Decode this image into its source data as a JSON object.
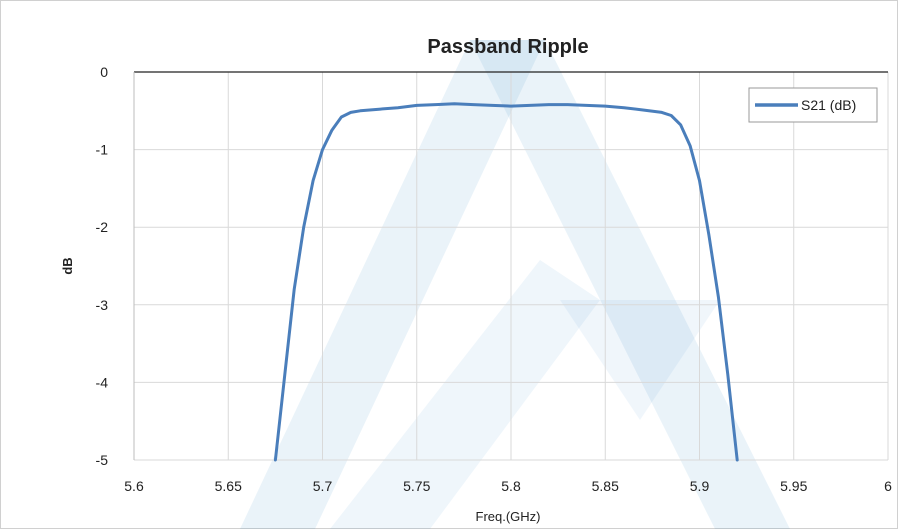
{
  "chart_data": {
    "type": "line",
    "title": "Passband Ripple",
    "xlabel": "Freq.(GHz)",
    "ylabel": "dB",
    "xlim": [
      5.6,
      6.0
    ],
    "ylim": [
      -5,
      0
    ],
    "x_ticks": [
      "5.6",
      "5.65",
      "5.7",
      "5.75",
      "5.8",
      "5.85",
      "5.9",
      "5.95",
      "6"
    ],
    "y_ticks": [
      "0",
      "-1",
      "-2",
      "-3",
      "-4",
      "-5"
    ],
    "grid": true,
    "legend_position": "top-right",
    "series": [
      {
        "name": "S21 (dB)",
        "color": "#4a7ebb",
        "x": [
          5.675,
          5.68,
          5.685,
          5.69,
          5.695,
          5.7,
          5.705,
          5.71,
          5.715,
          5.72,
          5.73,
          5.74,
          5.75,
          5.76,
          5.77,
          5.78,
          5.79,
          5.8,
          5.81,
          5.82,
          5.83,
          5.84,
          5.85,
          5.86,
          5.87,
          5.88,
          5.885,
          5.89,
          5.895,
          5.9,
          5.905,
          5.91,
          5.915,
          5.92
        ],
        "y": [
          -5.0,
          -3.9,
          -2.8,
          -2.0,
          -1.4,
          -1.0,
          -0.75,
          -0.58,
          -0.52,
          -0.5,
          -0.48,
          -0.46,
          -0.43,
          -0.42,
          -0.41,
          -0.42,
          -0.43,
          -0.44,
          -0.43,
          -0.42,
          -0.42,
          -0.43,
          -0.44,
          -0.46,
          -0.49,
          -0.52,
          -0.56,
          -0.68,
          -0.95,
          -1.4,
          -2.1,
          -2.9,
          -3.9,
          -5.0
        ]
      }
    ]
  },
  "watermark": {
    "color": "#2f86c8",
    "shape": "stylized-logo"
  }
}
